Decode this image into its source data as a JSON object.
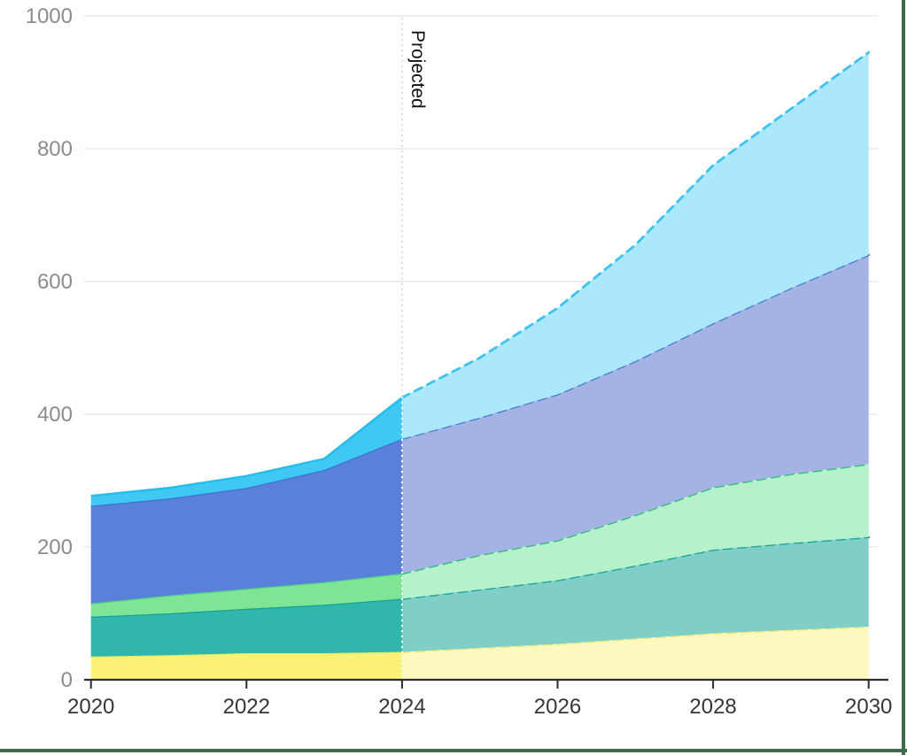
{
  "frame": {
    "background": "#FFFFFF",
    "border_color": "#3E6B4E"
  },
  "axes": {
    "y_label_color": "#8C8C8C",
    "x_label_color": "#363636",
    "axis_color": "#2B2B2B",
    "grid_color": "#E9E9E9"
  },
  "annotation": {
    "label": "Projected",
    "divider_year": 2024
  },
  "chart_data": {
    "type": "area",
    "stacked": true,
    "title": "",
    "xlabel": "",
    "ylabel": "",
    "x": [
      2020,
      2021,
      2022,
      2023,
      2024,
      2025,
      2026,
      2027,
      2028,
      2029,
      2030
    ],
    "x_ticks": [
      2020,
      2022,
      2024,
      2026,
      2028,
      2030
    ],
    "x_tick_labels": [
      "2020",
      "2022",
      "2024",
      "2026",
      "2028",
      "2030"
    ],
    "y_ticks": [
      0,
      200,
      400,
      600,
      800,
      1000
    ],
    "y_tick_labels": [
      "0",
      "200",
      "400",
      "600",
      "800",
      "1000"
    ],
    "ylim": [
      0,
      1000
    ],
    "xlim": [
      2020,
      2030
    ],
    "grid": true,
    "legend_position": "none",
    "projection_start_x": 2024,
    "annotation_label": "Projected",
    "series": [
      {
        "name": "yellow-band",
        "values": [
          35,
          37,
          40,
          40,
          42,
          48,
          54,
          62,
          70,
          75,
          80
        ],
        "fill": "#FBF277",
        "fill_projected": "#FCF8BE",
        "line": "#F2E95F",
        "line_projected": "#EFE97A"
      },
      {
        "name": "teal-band",
        "values": [
          60,
          63,
          67,
          73,
          80,
          88,
          96,
          110,
          126,
          131,
          135
        ],
        "fill": "#30B6AB",
        "fill_projected": "#80CEC8",
        "line": "#13A196",
        "line_projected": "#1BA89C"
      },
      {
        "name": "green-band",
        "values": [
          20,
          27,
          30,
          34,
          38,
          52,
          60,
          76,
          94,
          104,
          110
        ],
        "fill": "#7FE495",
        "fill_projected": "#B5F1CA",
        "line": "#4FD87F",
        "line_projected": "#32BF7C"
      },
      {
        "name": "blue-band",
        "values": [
          147,
          146,
          152,
          169,
          203,
          207,
          220,
          232,
          247,
          280,
          315
        ],
        "fill": "#5B80D9",
        "fill_projected": "#A4B3E4",
        "line": "#3E6FD1",
        "line_projected": "#4C7FD6"
      },
      {
        "name": "cyan-band",
        "values": [
          15,
          16,
          18,
          17,
          62,
          90,
          130,
          175,
          238,
          270,
          305
        ],
        "fill": "#3FC8F2",
        "fill_projected": "#ACE8FB",
        "line": "#27BCEE",
        "line_projected": "#3FC2F1"
      }
    ]
  }
}
